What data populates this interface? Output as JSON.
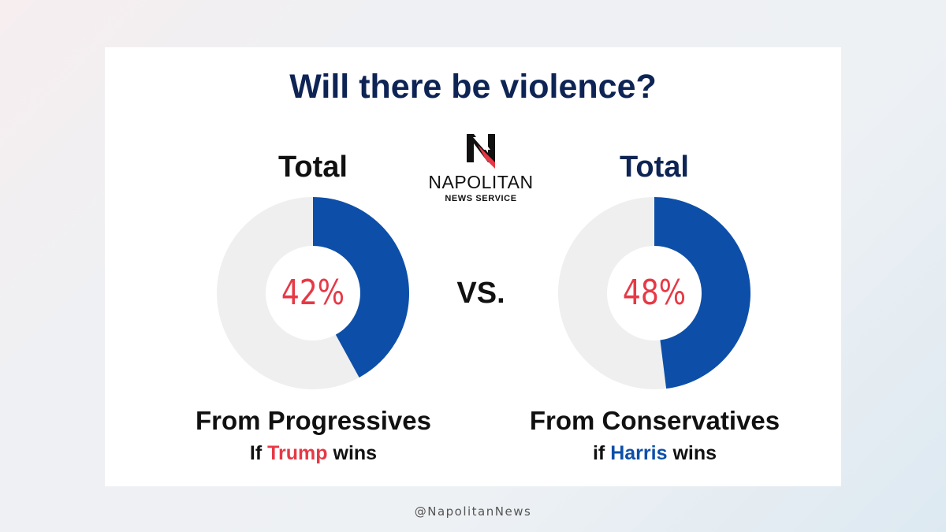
{
  "title": "Will there be violence?",
  "handle": "@NapolitanNews",
  "logo": {
    "letter": "N",
    "wordmark": "NAPOLITAN",
    "subtitle": "NEWS SERVICE"
  },
  "vs_label": "VS.",
  "colors": {
    "filled": "#0d4fa8",
    "track": "#efefef",
    "percent": "#e63946",
    "title": "#0d2454",
    "trump": "#e63946",
    "harris": "#0d4fa8"
  },
  "chart_data": [
    {
      "type": "pie",
      "title": "Total",
      "value": 42,
      "value_label": "42%",
      "max": 100,
      "caption": "From Progressives",
      "condition": {
        "prefix": "If",
        "name": "Trump",
        "suffix": "wins"
      }
    },
    {
      "type": "pie",
      "title": "Total",
      "value": 48,
      "value_label": "48%",
      "max": 100,
      "caption": "From Conservatives",
      "condition": {
        "prefix": "if",
        "name": "Harris",
        "suffix": "wins"
      }
    }
  ]
}
